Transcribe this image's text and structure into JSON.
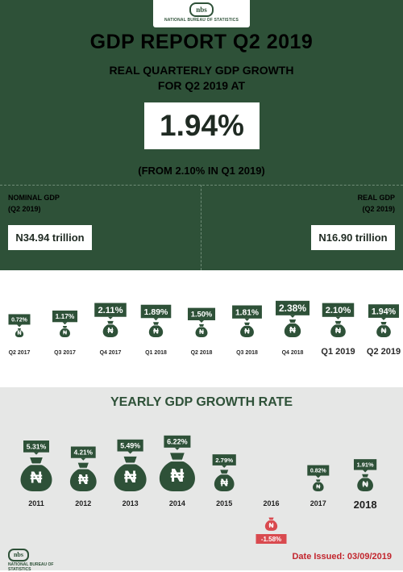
{
  "agency": "NATIONAL BUREAU OF STATISTICS",
  "logo_abbr": "nbs",
  "title": "GDP REPORT Q2 2019",
  "subtitle_line1": "REAL QUARTERLY GDP GROWTH",
  "subtitle_line2": "FOR Q2 2019 AT",
  "headline_value": "1.94%",
  "from_text": "(FROM 2.10% IN Q1 2019)",
  "nominal": {
    "label": "NOMINAL GDP",
    "period": "(Q2 2019)",
    "value": "N34.94 trillion"
  },
  "real": {
    "label": "REAL GDP",
    "period": "(Q2 2019)",
    "value": "N16.90 trillion"
  },
  "currency_symbol": "₦",
  "date_issued": "Date Issued: 03/09/2019",
  "colors": {
    "green": "#2e5138",
    "red": "#d94a4f",
    "grey": "#e6e7e6"
  },
  "chart_data": [
    {
      "type": "bar",
      "categories": [
        "Q2 2017",
        "Q3 2017",
        "Q4 2017",
        "Q1 2018",
        "Q2 2018",
        "Q3 2018",
        "Q4 2018",
        "Q1 2019",
        "Q2 2019"
      ],
      "values": [
        0.72,
        1.17,
        2.11,
        1.89,
        1.5,
        1.81,
        2.38,
        2.1,
        1.94
      ],
      "labels": [
        "0.72%",
        "1.17%",
        "2.11%",
        "1.89%",
        "1.50%",
        "1.81%",
        "2.38%",
        "2.10%",
        "1.94%"
      ]
    },
    {
      "type": "bar",
      "title": "YEARLY GDP GROWTH RATE",
      "categories": [
        "2011",
        "2012",
        "2013",
        "2014",
        "2015",
        "2016",
        "2017",
        "2018"
      ],
      "values": [
        5.31,
        4.21,
        5.49,
        6.22,
        2.79,
        -1.58,
        0.82,
        1.91
      ],
      "labels": [
        "5.31%",
        "4.21%",
        "5.49%",
        "6.22%",
        "2.79%",
        "-1.58%",
        "0.82%",
        "1.91%"
      ]
    }
  ]
}
